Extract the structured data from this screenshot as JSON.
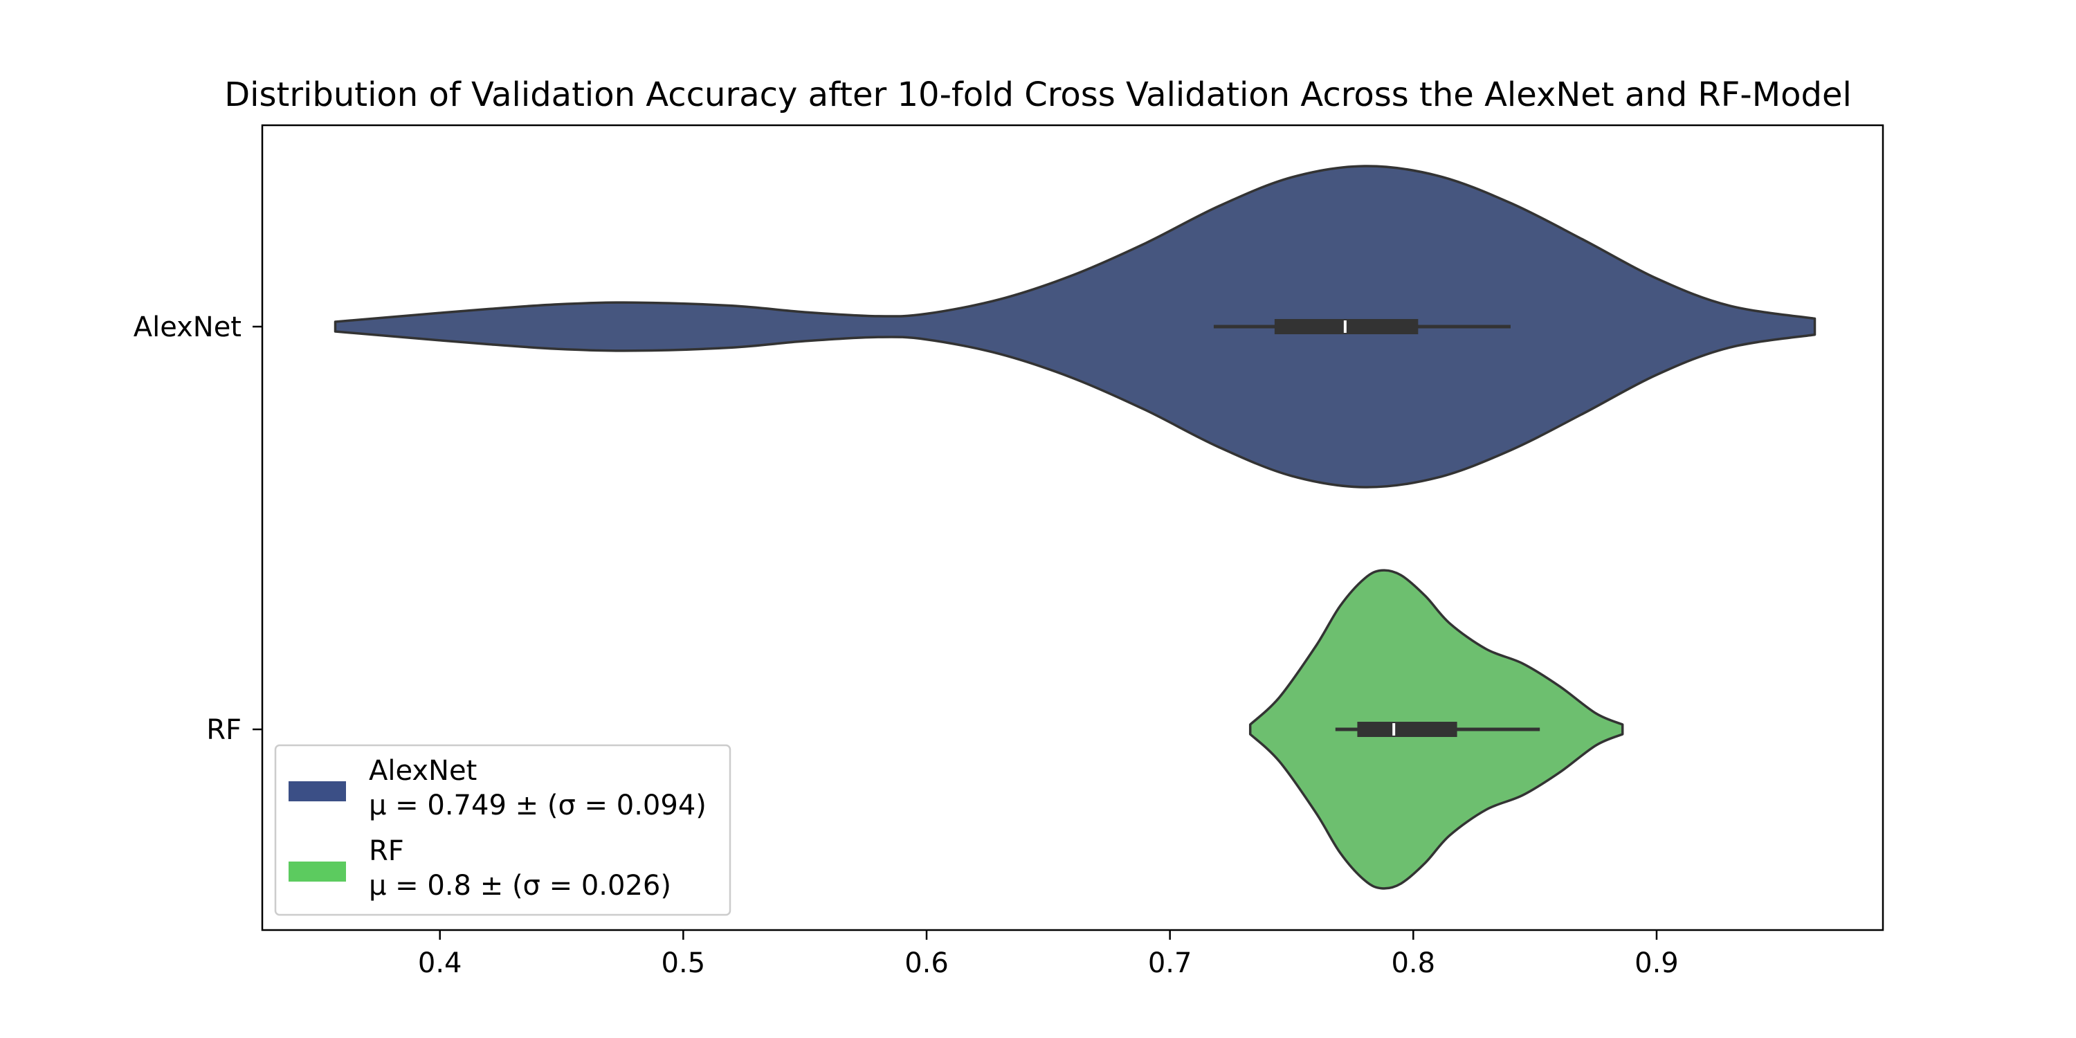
{
  "chart_data": {
    "type": "violin",
    "orientation": "horizontal",
    "title": "Distribution of Validation Accuracy after 10-fold Cross Validation Across the AlexNet and RF-Model",
    "xlabel": "",
    "ylabel": "",
    "xlim": [
      0.327,
      0.993
    ],
    "x_ticks": [
      0.4,
      0.5,
      0.6,
      0.7,
      0.8,
      0.9
    ],
    "x_tick_labels": [
      "0.4",
      "0.5",
      "0.6",
      "0.7",
      "0.8",
      "0.9"
    ],
    "categories": [
      "AlexNet",
      "RF"
    ],
    "grid": false,
    "legend_position": "lower-left",
    "series": [
      {
        "name": "AlexNet",
        "color": "#46567f",
        "legend_line1": "AlexNet",
        "legend_line2": "μ = 0.749 ± (σ = 0.094)",
        "mean": 0.749,
        "std": 0.094,
        "min": 0.718,
        "q1": 0.743,
        "median": 0.772,
        "q3": 0.802,
        "max": 0.84,
        "density_x": [
          0.357,
          0.38,
          0.42,
          0.45,
          0.48,
          0.52,
          0.55,
          0.58,
          0.6,
          0.63,
          0.66,
          0.69,
          0.72,
          0.75,
          0.78,
          0.81,
          0.84,
          0.87,
          0.9,
          0.93,
          0.965
        ],
        "density_half_width": [
          0.03,
          0.06,
          0.11,
          0.14,
          0.15,
          0.13,
          0.09,
          0.065,
          0.08,
          0.17,
          0.32,
          0.52,
          0.75,
          0.93,
          1.0,
          0.94,
          0.77,
          0.54,
          0.3,
          0.13,
          0.05
        ]
      },
      {
        "name": "RF",
        "color": "#6dbf6f",
        "legend_line1": "RF",
        "legend_line2": "μ = 0.8 ± (σ = 0.026)",
        "mean": 0.8,
        "std": 0.026,
        "min": 0.768,
        "q1": 0.777,
        "median": 0.792,
        "q3": 0.818,
        "max": 0.852,
        "density_x": [
          0.733,
          0.745,
          0.76,
          0.77,
          0.78,
          0.787,
          0.795,
          0.805,
          0.815,
          0.83,
          0.845,
          0.86,
          0.875,
          0.886
        ],
        "density_half_width": [
          0.03,
          0.2,
          0.52,
          0.77,
          0.94,
          0.99,
          0.96,
          0.83,
          0.66,
          0.5,
          0.41,
          0.27,
          0.1,
          0.03
        ]
      }
    ]
  },
  "colors": {
    "alexnet": "#46567f",
    "rf": "#6dbf6f",
    "legend_alexnet": "#3b4f86",
    "legend_rf": "#5ccb5f",
    "edge": "#333333"
  }
}
